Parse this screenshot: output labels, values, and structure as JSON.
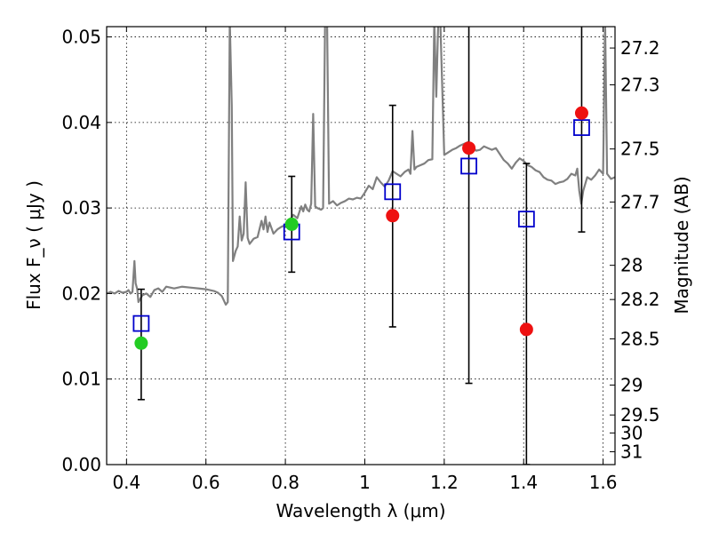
{
  "chart_data": {
    "type": "scatter",
    "xlabel": "Wavelength  λ (μm)",
    "ylabel": "Flux  F_ν  ( μJy )",
    "ylabel_right": "Magnitude (AB)",
    "xlim": [
      0.35,
      1.63
    ],
    "ylim": [
      0.0,
      0.0512
    ],
    "grid": true,
    "x_ticks": [
      0.4,
      0.6,
      0.8,
      1.0,
      1.2,
      1.4,
      1.6
    ],
    "x_tick_labels": [
      "0.4",
      "0.6",
      "0.8",
      "1",
      "1.2",
      "1.4",
      "1.6"
    ],
    "y_ticks": [
      0.0,
      0.01,
      0.02,
      0.03,
      0.04,
      0.05
    ],
    "y_tick_labels": [
      "0.00",
      "0.01",
      "0.02",
      "0.03",
      "0.04",
      "0.05"
    ],
    "right_ticks": [
      {
        "label": "27.2",
        "flux": 0.0487
      },
      {
        "label": "27.3",
        "flux": 0.0444
      },
      {
        "label": "27.5",
        "flux": 0.0369
      },
      {
        "label": "27.7",
        "flux": 0.0307
      },
      {
        "label": "28",
        "flux": 0.0233
      },
      {
        "label": "28.2",
        "flux": 0.0193
      },
      {
        "label": "28.5",
        "flux": 0.0147
      },
      {
        "label": "29",
        "flux": 0.0093
      },
      {
        "label": "29.5",
        "flux": 0.0058
      },
      {
        "label": "30",
        "flux": 0.0037
      },
      {
        "label": "31",
        "flux": 0.0015
      }
    ],
    "series": [
      {
        "type": "line",
        "color": "#808080",
        "points": [
          [
            0.35,
            0.02
          ],
          [
            0.36,
            0.0202
          ],
          [
            0.37,
            0.02
          ],
          [
            0.38,
            0.0203
          ],
          [
            0.39,
            0.0201
          ],
          [
            0.4,
            0.0202
          ],
          [
            0.405,
            0.0204
          ],
          [
            0.41,
            0.02
          ],
          [
            0.415,
            0.0202
          ],
          [
            0.42,
            0.0238
          ],
          [
            0.423,
            0.0212
          ],
          [
            0.427,
            0.0205
          ],
          [
            0.43,
            0.019
          ],
          [
            0.44,
            0.0198
          ],
          [
            0.45,
            0.02
          ],
          [
            0.46,
            0.0196
          ],
          [
            0.47,
            0.0204
          ],
          [
            0.48,
            0.0206
          ],
          [
            0.49,
            0.0202
          ],
          [
            0.5,
            0.0208
          ],
          [
            0.52,
            0.0206
          ],
          [
            0.54,
            0.0208
          ],
          [
            0.56,
            0.0207
          ],
          [
            0.58,
            0.0206
          ],
          [
            0.6,
            0.0205
          ],
          [
            0.62,
            0.0203
          ],
          [
            0.63,
            0.0201
          ],
          [
            0.64,
            0.0197
          ],
          [
            0.65,
            0.0187
          ],
          [
            0.655,
            0.019
          ],
          [
            0.66,
            0.052
          ],
          [
            0.665,
            0.042
          ],
          [
            0.668,
            0.0238
          ],
          [
            0.675,
            0.025
          ],
          [
            0.68,
            0.0255
          ],
          [
            0.685,
            0.029
          ],
          [
            0.69,
            0.0262
          ],
          [
            0.695,
            0.027
          ],
          [
            0.7,
            0.033
          ],
          [
            0.705,
            0.0265
          ],
          [
            0.71,
            0.0258
          ],
          [
            0.72,
            0.0264
          ],
          [
            0.73,
            0.0266
          ],
          [
            0.74,
            0.0285
          ],
          [
            0.745,
            0.0275
          ],
          [
            0.75,
            0.029
          ],
          [
            0.755,
            0.0272
          ],
          [
            0.76,
            0.0283
          ],
          [
            0.77,
            0.027
          ],
          [
            0.78,
            0.0275
          ],
          [
            0.79,
            0.0278
          ],
          [
            0.8,
            0.028
          ],
          [
            0.81,
            0.0285
          ],
          [
            0.82,
            0.0292
          ],
          [
            0.83,
            0.0288
          ],
          [
            0.84,
            0.0302
          ],
          [
            0.845,
            0.0296
          ],
          [
            0.85,
            0.0304
          ],
          [
            0.855,
            0.0298
          ],
          [
            0.86,
            0.0296
          ],
          [
            0.865,
            0.0305
          ],
          [
            0.87,
            0.041
          ],
          [
            0.875,
            0.0302
          ],
          [
            0.88,
            0.03
          ],
          [
            0.89,
            0.0298
          ],
          [
            0.895,
            0.03
          ],
          [
            0.9,
            0.052
          ],
          [
            0.905,
            0.052
          ],
          [
            0.91,
            0.0305
          ],
          [
            0.92,
            0.0308
          ],
          [
            0.93,
            0.0303
          ],
          [
            0.94,
            0.0306
          ],
          [
            0.95,
            0.0308
          ],
          [
            0.96,
            0.0311
          ],
          [
            0.97,
            0.031
          ],
          [
            0.98,
            0.0312
          ],
          [
            0.99,
            0.0311
          ],
          [
            1.0,
            0.0318
          ],
          [
            1.01,
            0.0326
          ],
          [
            1.02,
            0.0322
          ],
          [
            1.03,
            0.0336
          ],
          [
            1.04,
            0.033
          ],
          [
            1.05,
            0.0325
          ],
          [
            1.06,
            0.0332
          ],
          [
            1.07,
            0.0343
          ],
          [
            1.08,
            0.034
          ],
          [
            1.09,
            0.0337
          ],
          [
            1.1,
            0.0342
          ],
          [
            1.11,
            0.0345
          ],
          [
            1.115,
            0.034
          ],
          [
            1.12,
            0.039
          ],
          [
            1.125,
            0.0345
          ],
          [
            1.13,
            0.0348
          ],
          [
            1.14,
            0.035
          ],
          [
            1.15,
            0.0352
          ],
          [
            1.16,
            0.0356
          ],
          [
            1.17,
            0.0357
          ],
          [
            1.175,
            0.052
          ],
          [
            1.18,
            0.043
          ],
          [
            1.185,
            0.052
          ],
          [
            1.19,
            0.052
          ],
          [
            1.2,
            0.0362
          ],
          [
            1.21,
            0.0365
          ],
          [
            1.22,
            0.0368
          ],
          [
            1.23,
            0.037
          ],
          [
            1.24,
            0.0373
          ],
          [
            1.25,
            0.0375
          ],
          [
            1.26,
            0.0377
          ],
          [
            1.27,
            0.0372
          ],
          [
            1.28,
            0.0367
          ],
          [
            1.29,
            0.0368
          ],
          [
            1.3,
            0.0372
          ],
          [
            1.31,
            0.037
          ],
          [
            1.32,
            0.0368
          ],
          [
            1.33,
            0.037
          ],
          [
            1.34,
            0.0363
          ],
          [
            1.35,
            0.0356
          ],
          [
            1.36,
            0.0352
          ],
          [
            1.37,
            0.0346
          ],
          [
            1.38,
            0.0353
          ],
          [
            1.39,
            0.0358
          ],
          [
            1.4,
            0.0355
          ],
          [
            1.41,
            0.035
          ],
          [
            1.42,
            0.0348
          ],
          [
            1.43,
            0.0344
          ],
          [
            1.44,
            0.0342
          ],
          [
            1.45,
            0.0336
          ],
          [
            1.46,
            0.0333
          ],
          [
            1.47,
            0.0332
          ],
          [
            1.48,
            0.0328
          ],
          [
            1.49,
            0.033
          ],
          [
            1.5,
            0.0331
          ],
          [
            1.51,
            0.0334
          ],
          [
            1.52,
            0.034
          ],
          [
            1.53,
            0.0338
          ],
          [
            1.535,
            0.0346
          ],
          [
            1.54,
            0.032
          ],
          [
            1.545,
            0.0305
          ],
          [
            1.55,
            0.032
          ],
          [
            1.56,
            0.0336
          ],
          [
            1.57,
            0.0333
          ],
          [
            1.58,
            0.0338
          ],
          [
            1.59,
            0.0345
          ],
          [
            1.6,
            0.034
          ],
          [
            1.605,
            0.052
          ],
          [
            1.61,
            0.034
          ],
          [
            1.62,
            0.0334
          ],
          [
            1.63,
            0.0336
          ]
        ]
      },
      {
        "type": "errorbar",
        "color": "#000000",
        "points": [
          {
            "x": 0.437,
            "low": 0.0076,
            "high": 0.0205
          },
          {
            "x": 0.816,
            "low": 0.0225,
            "high": 0.0337
          },
          {
            "x": 1.07,
            "low": 0.0161,
            "high": 0.042
          },
          {
            "x": 1.262,
            "low": 0.0095,
            "high": 0.052
          },
          {
            "x": 1.407,
            "low": 0.0,
            "high": 0.0352
          },
          {
            "x": 1.546,
            "low": 0.0272,
            "high": 0.052
          }
        ]
      },
      {
        "type": "scatter",
        "marker": "open-square",
        "color": "#0000cc",
        "points": [
          [
            0.437,
            0.0165
          ],
          [
            0.816,
            0.0272
          ],
          [
            1.07,
            0.0319
          ],
          [
            1.262,
            0.0349
          ],
          [
            1.407,
            0.0287
          ],
          [
            1.546,
            0.0394
          ]
        ]
      },
      {
        "type": "scatter",
        "marker": "filled-circle",
        "color": "#22cc22",
        "points": [
          [
            0.437,
            0.0142
          ],
          [
            0.816,
            0.0281
          ]
        ]
      },
      {
        "type": "scatter",
        "marker": "filled-circle",
        "color": "#ee1111",
        "points": [
          [
            1.07,
            0.0291
          ],
          [
            1.262,
            0.037
          ],
          [
            1.407,
            0.0158
          ],
          [
            1.546,
            0.0411
          ]
        ]
      }
    ]
  }
}
